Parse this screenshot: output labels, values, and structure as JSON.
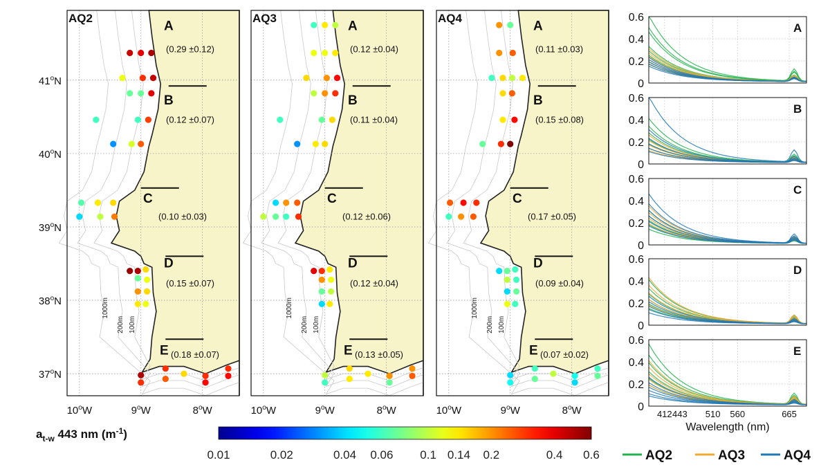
{
  "figure": {
    "colorbar": {
      "label_main": "a",
      "label_sub": "t-w",
      "label_rest": " 443 nm (m",
      "label_sup": "-1",
      "label_end": ")",
      "ticks": [
        "0.01",
        "0.02",
        "0.04",
        "0.06",
        "0.1",
        "0.14",
        "0.2",
        "0.4",
        "0.6"
      ],
      "range": [
        0.01,
        0.6
      ],
      "scale": "log"
    },
    "legend": [
      {
        "name": "AQ2",
        "color": "#22b14c"
      },
      {
        "name": "AQ3",
        "color": "#f0a830"
      },
      {
        "name": "AQ4",
        "color": "#1f77b4"
      }
    ]
  },
  "chart_data": [
    {
      "type": "scatter",
      "panel": "AQ2",
      "xlabel_ticks": [
        "10",
        "9",
        "8"
      ],
      "ylabel_ticks": [
        "41",
        "40",
        "39",
        "38",
        "37"
      ],
      "lon_range": [
        -10.2,
        -7.4
      ],
      "lat_range": [
        36.7,
        41.95
      ],
      "isobaths": [
        "1000m",
        "200m",
        "100m"
      ],
      "regions": [
        {
          "id": "A",
          "stat": "(0.29 ±0.12)"
        },
        {
          "id": "B",
          "stat": "(0.12 ±0.07)"
        },
        {
          "id": "C",
          "stat": "(0.10 ±0.03)"
        },
        {
          "id": "D",
          "stat": "(0.15 ±0.07)"
        },
        {
          "id": "E",
          "stat": "(0.18 ±0.07)"
        }
      ],
      "stations": [
        {
          "lon": -9.18,
          "lat": 41.37,
          "v": 0.45
        },
        {
          "lon": -9.0,
          "lat": 41.37,
          "v": 0.4
        },
        {
          "lon": -8.83,
          "lat": 41.37,
          "v": 0.5
        },
        {
          "lon": -9.3,
          "lat": 41.03,
          "v": 0.12
        },
        {
          "lon": -8.97,
          "lat": 41.03,
          "v": 0.3
        },
        {
          "lon": -8.8,
          "lat": 41.03,
          "v": 0.45
        },
        {
          "lon": -9.18,
          "lat": 40.82,
          "v": 0.07
        },
        {
          "lon": -9.0,
          "lat": 40.82,
          "v": 0.07
        },
        {
          "lon": -8.83,
          "lat": 40.82,
          "v": 0.4
        },
        {
          "lon": -9.73,
          "lat": 40.46,
          "v": 0.06
        },
        {
          "lon": -9.05,
          "lat": 40.46,
          "v": 0.06
        },
        {
          "lon": -8.88,
          "lat": 40.46,
          "v": 0.28
        },
        {
          "lon": -9.45,
          "lat": 40.13,
          "v": 0.03
        },
        {
          "lon": -9.15,
          "lat": 40.13,
          "v": 0.11
        },
        {
          "lon": -9.0,
          "lat": 40.13,
          "v": 0.25
        },
        {
          "lon": -9.97,
          "lat": 39.33,
          "v": 0.065
        },
        {
          "lon": -9.7,
          "lat": 39.33,
          "v": 0.14
        },
        {
          "lon": -9.45,
          "lat": 39.33,
          "v": 0.15
        },
        {
          "lon": -10.0,
          "lat": 39.14,
          "v": 0.04
        },
        {
          "lon": -9.66,
          "lat": 39.14,
          "v": 0.1
        },
        {
          "lon": -9.43,
          "lat": 39.14,
          "v": 0.22
        },
        {
          "lon": -9.18,
          "lat": 38.4,
          "v": 0.55
        },
        {
          "lon": -9.05,
          "lat": 38.4,
          "v": 0.5
        },
        {
          "lon": -8.92,
          "lat": 38.42,
          "v": 0.15
        },
        {
          "lon": -9.05,
          "lat": 38.3,
          "v": 0.07
        },
        {
          "lon": -8.9,
          "lat": 38.28,
          "v": 0.12
        },
        {
          "lon": -9.05,
          "lat": 38.12,
          "v": 0.2
        },
        {
          "lon": -8.9,
          "lat": 38.12,
          "v": 0.15
        },
        {
          "lon": -9.05,
          "lat": 37.95,
          "v": 0.14
        },
        {
          "lon": -8.92,
          "lat": 37.95,
          "v": 0.12
        },
        {
          "lon": -9.0,
          "lat": 36.98,
          "v": 0.5
        },
        {
          "lon": -9.0,
          "lat": 36.88,
          "v": 0.3
        },
        {
          "lon": -8.6,
          "lat": 37.07,
          "v": 0.3
        },
        {
          "lon": -8.6,
          "lat": 36.93,
          "v": 0.25
        },
        {
          "lon": -8.3,
          "lat": 37.0,
          "v": 0.15
        },
        {
          "lon": -7.95,
          "lat": 36.97,
          "v": 0.3
        },
        {
          "lon": -7.95,
          "lat": 36.88,
          "v": 0.35
        },
        {
          "lon": -7.58,
          "lat": 37.07,
          "v": 0.3
        },
        {
          "lon": -7.58,
          "lat": 36.97,
          "v": 0.35
        }
      ]
    },
    {
      "type": "scatter",
      "panel": "AQ3",
      "xlabel_ticks": [
        "10",
        "9",
        "8"
      ],
      "ylabel_ticks": [],
      "lon_range": [
        -10.2,
        -7.4
      ],
      "lat_range": [
        36.7,
        41.95
      ],
      "isobaths": [
        "1000m",
        "200m",
        "100m"
      ],
      "regions": [
        {
          "id": "A",
          "stat": "(0.12 ±0.04)"
        },
        {
          "id": "B",
          "stat": "(0.11 ±0.04)"
        },
        {
          "id": "C",
          "stat": "(0.12 ±0.06)"
        },
        {
          "id": "D",
          "stat": "(0.12 ±0.04)"
        },
        {
          "id": "E",
          "stat": "(0.13 ±0.05)"
        }
      ],
      "stations": [
        {
          "lon": -9.18,
          "lat": 41.75,
          "v": 0.06
        },
        {
          "lon": -9.0,
          "lat": 41.75,
          "v": 0.14
        },
        {
          "lon": -8.83,
          "lat": 41.75,
          "v": 0.1
        },
        {
          "lon": -9.18,
          "lat": 41.37,
          "v": 0.12
        },
        {
          "lon": -9.0,
          "lat": 41.37,
          "v": 0.12
        },
        {
          "lon": -8.83,
          "lat": 41.37,
          "v": 0.14
        },
        {
          "lon": -9.3,
          "lat": 41.03,
          "v": 0.15
        },
        {
          "lon": -8.97,
          "lat": 41.03,
          "v": 0.2
        },
        {
          "lon": -8.8,
          "lat": 41.03,
          "v": 0.35
        },
        {
          "lon": -9.18,
          "lat": 40.82,
          "v": 0.1
        },
        {
          "lon": -9.0,
          "lat": 40.82,
          "v": 0.2
        },
        {
          "lon": -8.83,
          "lat": 40.82,
          "v": 0.3
        },
        {
          "lon": -9.73,
          "lat": 40.46,
          "v": 0.06
        },
        {
          "lon": -9.05,
          "lat": 40.46,
          "v": 0.07
        },
        {
          "lon": -8.88,
          "lat": 40.46,
          "v": 0.15
        },
        {
          "lon": -9.45,
          "lat": 40.13,
          "v": 0.03
        },
        {
          "lon": -9.15,
          "lat": 40.13,
          "v": 0.14
        },
        {
          "lon": -9.0,
          "lat": 40.13,
          "v": 0.15
        },
        {
          "lon": -9.8,
          "lat": 39.33,
          "v": 0.04
        },
        {
          "lon": -9.63,
          "lat": 39.33,
          "v": 0.2
        },
        {
          "lon": -9.45,
          "lat": 39.33,
          "v": 0.25
        },
        {
          "lon": -10.0,
          "lat": 39.14,
          "v": 0.1
        },
        {
          "lon": -9.8,
          "lat": 39.14,
          "v": 0.07
        },
        {
          "lon": -9.63,
          "lat": 39.14,
          "v": 0.06
        },
        {
          "lon": -9.43,
          "lat": 39.14,
          "v": 0.3
        },
        {
          "lon": -9.18,
          "lat": 38.4,
          "v": 0.4
        },
        {
          "lon": -9.05,
          "lat": 38.4,
          "v": 0.3
        },
        {
          "lon": -8.92,
          "lat": 38.42,
          "v": 0.14
        },
        {
          "lon": -9.05,
          "lat": 38.28,
          "v": 0.2
        },
        {
          "lon": -8.9,
          "lat": 38.28,
          "v": 0.12
        },
        {
          "lon": -9.05,
          "lat": 38.12,
          "v": 0.07
        },
        {
          "lon": -8.9,
          "lat": 38.12,
          "v": 0.1
        },
        {
          "lon": -9.05,
          "lat": 37.95,
          "v": 0.04
        },
        {
          "lon": -8.92,
          "lat": 37.95,
          "v": 0.14
        },
        {
          "lon": -9.0,
          "lat": 36.98,
          "v": 0.1
        },
        {
          "lon": -9.0,
          "lat": 36.88,
          "v": 0.06
        },
        {
          "lon": -8.6,
          "lat": 37.07,
          "v": 0.15
        },
        {
          "lon": -8.6,
          "lat": 36.93,
          "v": 0.14
        },
        {
          "lon": -8.3,
          "lat": 37.0,
          "v": 0.14
        },
        {
          "lon": -7.95,
          "lat": 36.97,
          "v": 0.2
        },
        {
          "lon": -7.95,
          "lat": 36.88,
          "v": 0.07
        },
        {
          "lon": -7.58,
          "lat": 37.07,
          "v": 0.2
        },
        {
          "lon": -7.58,
          "lat": 36.97,
          "v": 0.25
        }
      ]
    },
    {
      "type": "scatter",
      "panel": "AQ4",
      "xlabel_ticks": [
        "10",
        "9",
        "8"
      ],
      "ylabel_ticks": [],
      "lon_range": [
        -10.2,
        -7.4
      ],
      "lat_range": [
        36.7,
        41.95
      ],
      "isobaths": [
        "1000m",
        "200m",
        "100m"
      ],
      "regions": [
        {
          "id": "A",
          "stat": "(0.11 ±0.03)"
        },
        {
          "id": "B",
          "stat": "(0.15 ±0.08)"
        },
        {
          "id": "C",
          "stat": "(0.17 ±0.05)"
        },
        {
          "id": "D",
          "stat": "(0.09 ±0.04)"
        },
        {
          "id": "E",
          "stat": "(0.07 ±0.02)"
        }
      ],
      "stations": [
        {
          "lon": -9.18,
          "lat": 41.75,
          "v": 0.2
        },
        {
          "lon": -9.0,
          "lat": 41.75,
          "v": 0.07
        },
        {
          "lon": -9.18,
          "lat": 41.37,
          "v": 0.2
        },
        {
          "lon": -8.96,
          "lat": 41.37,
          "v": 0.25
        },
        {
          "lon": -9.3,
          "lat": 41.03,
          "v": 0.06
        },
        {
          "lon": -9.12,
          "lat": 41.03,
          "v": 0.15
        },
        {
          "lon": -8.97,
          "lat": 41.03,
          "v": 0.1
        },
        {
          "lon": -8.8,
          "lat": 41.03,
          "v": 0.14
        },
        {
          "lon": -9.12,
          "lat": 40.82,
          "v": 0.15
        },
        {
          "lon": -8.97,
          "lat": 40.82,
          "v": 0.25
        },
        {
          "lon": -9.12,
          "lat": 40.46,
          "v": 0.14
        },
        {
          "lon": -8.93,
          "lat": 40.46,
          "v": 0.35
        },
        {
          "lon": -9.45,
          "lat": 40.13,
          "v": 0.07
        },
        {
          "lon": -9.15,
          "lat": 40.13,
          "v": 0.3
        },
        {
          "lon": -9.0,
          "lat": 40.13,
          "v": 0.6
        },
        {
          "lon": -9.98,
          "lat": 39.33,
          "v": 0.25
        },
        {
          "lon": -9.76,
          "lat": 39.33,
          "v": 0.35
        },
        {
          "lon": -9.55,
          "lat": 39.33,
          "v": 0.3
        },
        {
          "lon": -10.0,
          "lat": 39.14,
          "v": 0.06
        },
        {
          "lon": -9.8,
          "lat": 39.14,
          "v": 0.2
        },
        {
          "lon": -9.6,
          "lat": 39.14,
          "v": 0.25
        },
        {
          "lon": -9.18,
          "lat": 38.4,
          "v": 0.04
        },
        {
          "lon": -9.05,
          "lat": 38.4,
          "v": 0.07
        },
        {
          "lon": -8.92,
          "lat": 38.42,
          "v": 0.06
        },
        {
          "lon": -9.05,
          "lat": 38.28,
          "v": 0.1
        },
        {
          "lon": -8.9,
          "lat": 38.28,
          "v": 0.06
        },
        {
          "lon": -9.05,
          "lat": 38.12,
          "v": 0.04
        },
        {
          "lon": -8.9,
          "lat": 38.12,
          "v": 0.07
        },
        {
          "lon": -9.05,
          "lat": 37.95,
          "v": 0.12
        },
        {
          "lon": -8.92,
          "lat": 37.95,
          "v": 0.06
        },
        {
          "lon": -9.0,
          "lat": 36.98,
          "v": 0.04
        },
        {
          "lon": -9.0,
          "lat": 36.88,
          "v": 0.05
        },
        {
          "lon": -8.6,
          "lat": 37.07,
          "v": 0.06
        },
        {
          "lon": -8.6,
          "lat": 36.93,
          "v": 0.07
        },
        {
          "lon": -8.3,
          "lat": 37.0,
          "v": 0.1
        },
        {
          "lon": -7.95,
          "lat": 36.97,
          "v": 0.05
        },
        {
          "lon": -7.95,
          "lat": 36.88,
          "v": 0.04
        },
        {
          "lon": -7.58,
          "lat": 37.07,
          "v": 0.06
        },
        {
          "lon": -7.58,
          "lat": 36.97,
          "v": 0.07
        }
      ]
    },
    {
      "type": "line",
      "panels": [
        "A",
        "B",
        "C",
        "D",
        "E"
      ],
      "xlabel": "Wavelength (nm)",
      "x_ticks": [
        412,
        443,
        510,
        560,
        665
      ],
      "xlim": [
        380,
        700
      ],
      "ylim": [
        0,
        0.6
      ],
      "y_ticks": [
        "0",
        "0.2",
        "0.4",
        "0.6"
      ],
      "spectra": {
        "A": {
          "AQ2": [
            0.6,
            0.49,
            0.45,
            0.32,
            0.28,
            0.24,
            0.18,
            0.16
          ],
          "AQ3": [
            0.3,
            0.26,
            0.23,
            0.2,
            0.18,
            0.16
          ],
          "AQ4": [
            0.22,
            0.2,
            0.18,
            0.16,
            0.14
          ]
        },
        "B": {
          "AQ2": [
            0.4,
            0.33,
            0.27,
            0.21,
            0.17,
            0.13
          ],
          "AQ3": [
            0.25,
            0.2,
            0.16,
            0.13,
            0.11
          ],
          "AQ4": [
            0.6,
            0.3,
            0.22,
            0.17,
            0.13,
            0.1
          ]
        },
        "C": {
          "AQ2": [
            0.3,
            0.25,
            0.21,
            0.17,
            0.13
          ],
          "AQ3": [
            0.34,
            0.28,
            0.23,
            0.18
          ],
          "AQ4": [
            0.45,
            0.36,
            0.3,
            0.25,
            0.2,
            0.16
          ]
        },
        "D": {
          "AQ2": [
            0.4,
            0.32,
            0.27,
            0.22,
            0.18,
            0.14
          ],
          "AQ3": [
            0.42,
            0.35,
            0.28,
            0.22,
            0.17
          ],
          "AQ4": [
            0.25,
            0.2,
            0.16,
            0.13,
            0.1
          ]
        },
        "E": {
          "AQ2": [
            0.55,
            0.45,
            0.38,
            0.3,
            0.24,
            0.18
          ],
          "AQ3": [
            0.4,
            0.34,
            0.28,
            0.23,
            0.18
          ],
          "AQ4": [
            0.25,
            0.2,
            0.16,
            0.13,
            0.1,
            0.08
          ]
        }
      }
    }
  ]
}
